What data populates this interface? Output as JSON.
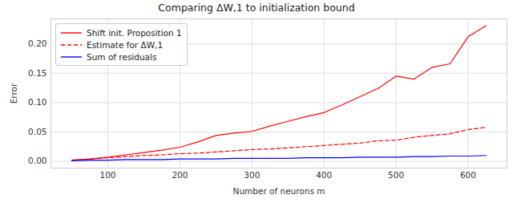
{
  "chart_data": {
    "type": "line",
    "title": "Comparing ΔW,1 to initialization bound",
    "x_label": "Number of neurons m",
    "y_label": "Error",
    "x": [
      50,
      75,
      100,
      125,
      150,
      175,
      200,
      225,
      250,
      275,
      300,
      325,
      350,
      375,
      400,
      425,
      450,
      475,
      500,
      525,
      550,
      575,
      600,
      625
    ],
    "series": [
      {
        "name": "Shift init. Proposition 1",
        "color": "#ff0000",
        "line_style": "solid",
        "values": [
          0.002,
          0.004,
          0.007,
          0.011,
          0.015,
          0.019,
          0.024,
          0.033,
          0.044,
          0.048,
          0.051,
          0.06,
          0.068,
          0.076,
          0.083,
          0.096,
          0.11,
          0.124,
          0.145,
          0.14,
          0.16,
          0.166,
          0.212,
          0.231
        ]
      },
      {
        "name": "Estimate for ΔW,1",
        "color": "#ff0000",
        "line_style": "dashed",
        "values": [
          0.002,
          0.004,
          0.006,
          0.008,
          0.01,
          0.011,
          0.013,
          0.014,
          0.016,
          0.018,
          0.02,
          0.021,
          0.023,
          0.025,
          0.027,
          0.029,
          0.031,
          0.035,
          0.036,
          0.041,
          0.044,
          0.047,
          0.054,
          0.058
        ]
      },
      {
        "name": "Sum of residuals",
        "color": "#0000ff",
        "line_style": "solid",
        "values": [
          0.001,
          0.002,
          0.002,
          0.003,
          0.003,
          0.003,
          0.004,
          0.004,
          0.004,
          0.005,
          0.005,
          0.005,
          0.005,
          0.006,
          0.006,
          0.006,
          0.007,
          0.007,
          0.007,
          0.008,
          0.008,
          0.009,
          0.009,
          0.01
        ]
      }
    ],
    "xlim": [
      21,
      654
    ],
    "ylim": [
      -0.0115,
      0.2425
    ],
    "xticks": [
      100,
      200,
      300,
      400,
      500,
      600
    ],
    "yticks": [
      {
        "value": 0,
        "label": "0.00"
      },
      {
        "value": 0.05,
        "label": "0.05"
      },
      {
        "value": 0.1,
        "label": "0.10"
      },
      {
        "value": 0.15,
        "label": "0.15"
      },
      {
        "value": 0.2,
        "label": "0.20"
      }
    ],
    "grid": true,
    "legend": "upper left"
  }
}
